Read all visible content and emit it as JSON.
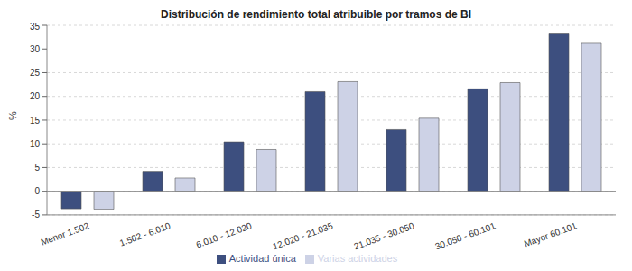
{
  "chart_data": {
    "type": "bar",
    "title": "Distribución de rendimiento total atribuible por tramos de BI",
    "y_label": "%",
    "categories": [
      "Menor 1.502",
      "1.502 - 6.010",
      "6.010 - 12.020",
      "12.020 - 21.035",
      "21.035 - 30.050",
      "30.050 - 60.101",
      "Mayor 60.101"
    ],
    "series": [
      {
        "name": "Actividad única",
        "color": "#3d4f7f",
        "values": [
          -3.7,
          4.2,
          10.4,
          21.0,
          13.0,
          21.6,
          33.2
        ]
      },
      {
        "name": "Varias actividades",
        "color": "#cdd2e6",
        "values": [
          -3.8,
          2.8,
          8.8,
          23.1,
          15.4,
          22.9,
          31.2
        ]
      }
    ],
    "ylim": [
      -5,
      35
    ],
    "yticks": [
      -5,
      0,
      5,
      10,
      15,
      20,
      25,
      30,
      35
    ],
    "grid": true,
    "legend": "bottom"
  }
}
